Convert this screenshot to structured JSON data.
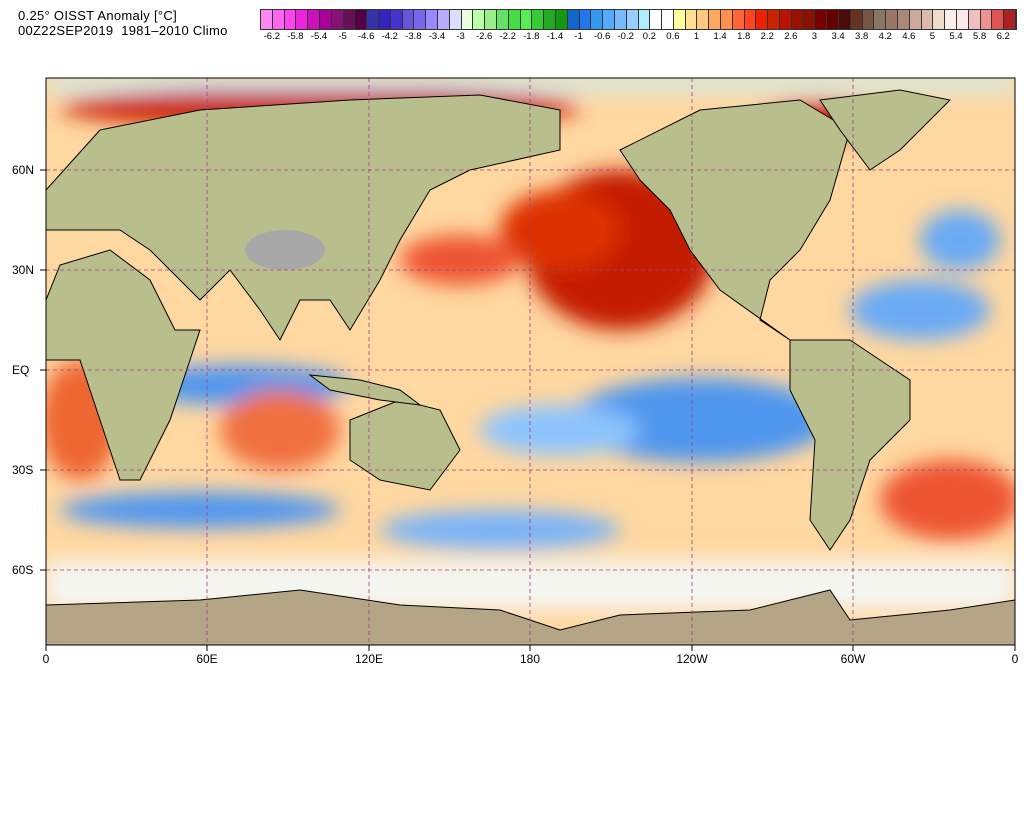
{
  "header": {
    "title_line1": "0.25° OISST Anomaly [°C]",
    "title_line2": "00Z22SEP2019  1981–2010 Climo"
  },
  "colorbar": {
    "labels": [
      "-6.2",
      "-5.8",
      "-5.4",
      "-5",
      "-4.6",
      "-4.2",
      "-3.8",
      "-3.4",
      "-3",
      "-2.6",
      "-2.2",
      "-1.8",
      "-1.4",
      "-1",
      "-0.6",
      "-0.2",
      "0.2",
      "0.6",
      "1",
      "1.4",
      "1.8",
      "2.2",
      "2.6",
      "3",
      "3.4",
      "3.8",
      "4.2",
      "4.6",
      "5",
      "5.4",
      "5.8",
      "6.2"
    ],
    "colors": [
      "#ff88f0",
      "#ff66ee",
      "#ff44ee",
      "#ee22dd",
      "#cc11bb",
      "#aa0099",
      "#881177",
      "#661155",
      "#550044",
      "#3333aa",
      "#3322bb",
      "#4433cc",
      "#6655dd",
      "#7766ee",
      "#9988ff",
      "#bbaaff",
      "#ddddff",
      "#e8ffe0",
      "#bbffaa",
      "#99ee88",
      "#66e066",
      "#44dd44",
      "#55ee55",
      "#33cc33",
      "#22aa22",
      "#119911",
      "#1166cc",
      "#2277ee",
      "#3399ee",
      "#55aaff",
      "#77bbff",
      "#99ccff",
      "#b0eeff",
      "#ffffff",
      "#ffffff",
      "#ffffa0",
      "#ffe090",
      "#ffc880",
      "#ffa860",
      "#ff9050",
      "#ff6633",
      "#ff4422",
      "#ee2200",
      "#cc2200",
      "#bb1100",
      "#991100",
      "#881100",
      "#770000",
      "#660000",
      "#4d0a0a",
      "#663322",
      "#775544",
      "#887766",
      "#997766",
      "#aa8877",
      "#ccaa99",
      "#ddbbaa",
      "#eeddcc",
      "#f8f0e8",
      "#fbe8ea",
      "#f0c0c0",
      "#f09090",
      "#dd5555",
      "#aa2222"
    ]
  },
  "axes": {
    "lat_labels": [
      "60N",
      "30N",
      "EQ",
      "30S",
      "60S"
    ],
    "lon_labels": [
      "0",
      "60E",
      "120E",
      "180",
      "120W",
      "60W",
      "0"
    ]
  },
  "palette": {
    "land": "#b9bf8c",
    "ocean_base": "#ffd7a0",
    "warm": "#c41a00",
    "cool": "#4f96ee",
    "ice": "#f4f6f2"
  }
}
